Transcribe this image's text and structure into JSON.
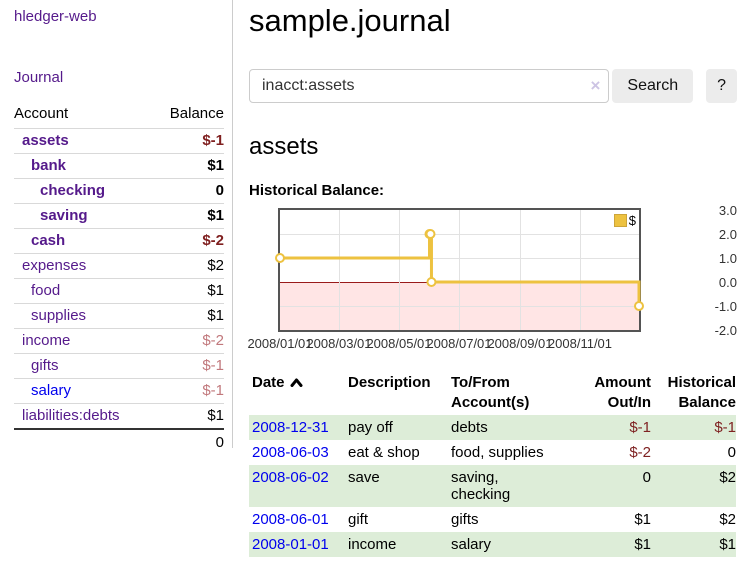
{
  "app": {
    "brand": "hledger-web",
    "nav": {
      "journal": "Journal"
    }
  },
  "sidebar": {
    "table_headers": {
      "account": "Account",
      "balance": "Balance"
    },
    "accounts": [
      {
        "name": "assets",
        "balance": "$-1",
        "level": 1,
        "bold": true,
        "balance_color": "negative-strong"
      },
      {
        "name": "bank",
        "balance": "$1",
        "level": 2,
        "bold": true,
        "balance_color": "normal"
      },
      {
        "name": "checking",
        "balance": "0",
        "level": 3,
        "bold": true,
        "balance_color": "normal"
      },
      {
        "name": "saving",
        "balance": "$1",
        "level": 3,
        "bold": true,
        "balance_color": "normal"
      },
      {
        "name": "cash",
        "balance": "$-2",
        "level": 2,
        "bold": true,
        "balance_color": "negative-strong"
      },
      {
        "name": "expenses",
        "balance": "$2",
        "level": 1,
        "bold": false,
        "balance_color": "normal"
      },
      {
        "name": "food",
        "balance": "$1",
        "level": 2,
        "bold": false,
        "balance_color": "normal"
      },
      {
        "name": "supplies",
        "balance": "$1",
        "level": 2,
        "bold": false,
        "balance_color": "normal"
      },
      {
        "name": "income",
        "balance": "$-2",
        "level": 1,
        "bold": false,
        "balance_color": "negative-soft"
      },
      {
        "name": "gifts",
        "balance": "$-1",
        "level": 2,
        "bold": false,
        "balance_color": "negative-soft"
      },
      {
        "name": "salary",
        "balance": "$-1",
        "level": 2,
        "bold": false,
        "balance_color": "negative-soft",
        "link_color": "blue"
      },
      {
        "name": "liabilities:debts",
        "balance": "$1",
        "level": 1,
        "bold": false,
        "balance_color": "normal"
      }
    ],
    "total": "0"
  },
  "main": {
    "title": "sample.journal",
    "search": {
      "value": "inacct:assets",
      "clear_icon": "×",
      "search_button": "Search",
      "help_button": "?"
    },
    "account_heading": "assets"
  },
  "chart_data": {
    "type": "line",
    "title": "Historical Balance:",
    "style": "steps",
    "grid": true,
    "legend_position": "top-right",
    "x_range": [
      "2008-01-01",
      "2008-12-31"
    ],
    "ylim": [
      -2,
      3
    ],
    "y_ticks": [
      {
        "label": "3.0",
        "value": 3
      },
      {
        "label": "2.0",
        "value": 2
      },
      {
        "label": "1.0",
        "value": 1
      },
      {
        "label": "0.0",
        "value": 0
      },
      {
        "label": "-1.0",
        "value": -1
      },
      {
        "label": "-2.0",
        "value": -2
      }
    ],
    "x_ticks": [
      {
        "label": "2008/01/01",
        "value": "2008-01-01"
      },
      {
        "label": "2008/03/01",
        "value": "2008-03-01"
      },
      {
        "label": "2008/05/01",
        "value": "2008-05-01"
      },
      {
        "label": "2008/07/01",
        "value": "2008-07-01"
      },
      {
        "label": "2008/09/01",
        "value": "2008-09-01"
      },
      {
        "label": "2008/11/01",
        "value": "2008-11-01"
      }
    ],
    "series": [
      {
        "name": "$",
        "color": "#edc240",
        "points": [
          {
            "x": "2008-01-01",
            "y": 1
          },
          {
            "x": "2008-06-01",
            "y": 2
          },
          {
            "x": "2008-06-02",
            "y": 2
          },
          {
            "x": "2008-06-03",
            "y": 0
          },
          {
            "x": "2008-12-31",
            "y": -1
          }
        ]
      }
    ],
    "negative_region_color": "#f9dada",
    "zero_line_color": "#8b1a1a"
  },
  "register": {
    "columns": [
      {
        "label": "Date",
        "sorted": "asc"
      },
      {
        "label": "Description"
      },
      {
        "label": "To/From Account(s)"
      },
      {
        "label": "Amount Out/In"
      },
      {
        "label": "Historical Balance"
      }
    ],
    "rows": [
      {
        "date": "2008-12-31",
        "description": "pay off",
        "accounts": "debts",
        "amount": "$-1",
        "amount_negative": true,
        "balance": "$-1",
        "balance_negative": true
      },
      {
        "date": "2008-06-03",
        "description": "eat & shop",
        "accounts": "food, supplies",
        "amount": "$-2",
        "amount_negative": true,
        "balance": "0",
        "balance_negative": false
      },
      {
        "date": "2008-06-02",
        "description": "save",
        "accounts": "saving, checking",
        "amount": "0",
        "amount_negative": false,
        "balance": "$2",
        "balance_negative": false
      },
      {
        "date": "2008-06-01",
        "description": "gift",
        "accounts": "gifts",
        "amount": "$1",
        "amount_negative": false,
        "balance": "$2",
        "balance_negative": false
      },
      {
        "date": "2008-01-01",
        "description": "income",
        "accounts": "salary",
        "amount": "$1",
        "amount_negative": false,
        "balance": "$1",
        "balance_negative": false
      }
    ]
  },
  "colors": {
    "link_visited": "#551a8b",
    "link": "#0000ee",
    "negative_strong": "#7f1f1f",
    "negative_soft": "#c1787c",
    "row_stripe": "#ddedd8",
    "chart_line": "#edc240"
  }
}
